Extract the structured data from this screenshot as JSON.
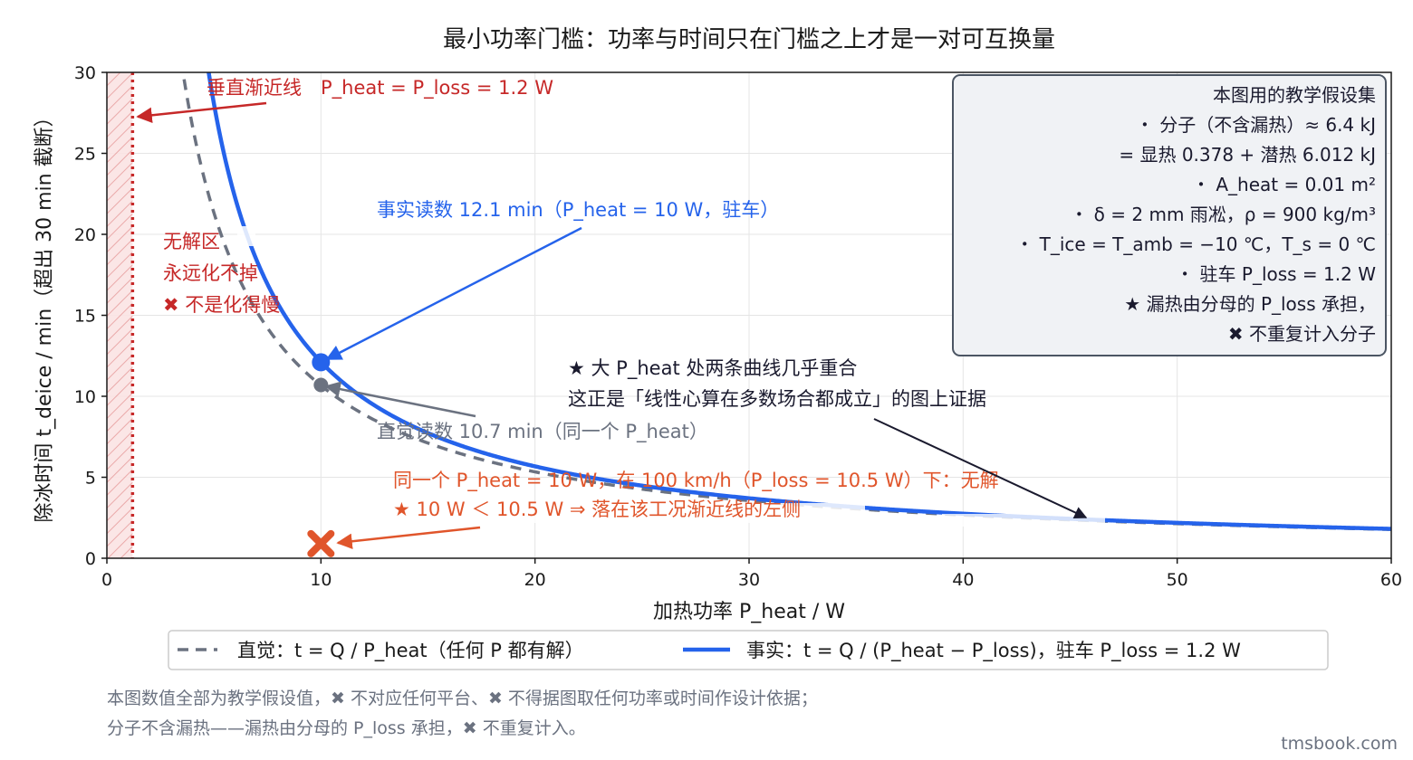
{
  "chart_data": {
    "type": "line",
    "title": "最小功率门槛：功率与时间只在门槛之上才是一对可互换量",
    "xlabel": "加热功率 P_heat / W",
    "ylabel": "除冰时间 t_deice / min（超出 30 min 截断）",
    "xlim": [
      0,
      60
    ],
    "ylim": [
      0,
      30
    ],
    "x_ticks": [
      "0",
      "10",
      "20",
      "30",
      "40",
      "50",
      "60"
    ],
    "y_ticks": [
      "0",
      "5",
      "10",
      "15",
      "20",
      "25",
      "30"
    ],
    "grid": true,
    "Q_kJ": 6.4,
    "P_loss": 1.2,
    "series": [
      {
        "name": "直觉：t = Q / P_heat（任何 P 都有解）",
        "formula": "t = Q / P_heat",
        "color": "#6b7280",
        "style": "dashed"
      },
      {
        "name": "事实：t = Q / (P_heat − P_loss)，驻车 P_loss = 1.2 W",
        "formula": "t = Q / (P_heat - P_loss)",
        "color": "#2563eb",
        "style": "solid"
      }
    ],
    "points": [
      {
        "name": "fact-reading",
        "x": 10,
        "y": 12.1,
        "color": "#2563eb"
      },
      {
        "name": "intuition-reading",
        "x": 10,
        "y": 10.7,
        "color": "#6b7280"
      },
      {
        "name": "no-solution-marker",
        "x": 10,
        "y": 0.9,
        "color": "#e0552b"
      }
    ],
    "asymptote": {
      "x": 1.2,
      "color": "#c62828"
    },
    "legend_position": "bottom-center",
    "annotations": {
      "asymptote": "垂直渐近线　P_heat = P_loss = 1.2 W",
      "no_solution_zone": [
        "无解区",
        "永远化不掉",
        "✖ 不是化得慢"
      ],
      "fact_reading": "事实读数 12.1 min（P_heat = 10 W，驻车）",
      "intuition_reading": "直觉读数 10.7 min（同一个 P_heat）",
      "highway": [
        "同一个 P_heat = 10 W，在 100 km/h（P_loss = 10.5 W）下：无解",
        "★ 10 W ＜ 10.5 W ⇒ 落在该工况渐近线的左侧"
      ],
      "convergence": [
        "★ 大 P_heat 处两条曲线几乎重合",
        "这正是「线性心算在多数场合都成立」的图上证据"
      ]
    },
    "assumption_box": [
      "本图用的教学假设集",
      "・ 分子（不含漏热）≈ 6.4 kJ",
      "= 显热 0.378 + 潜热 6.012 kJ",
      "・ A_heat = 0.01 m²",
      "・ δ = 2 mm 雨凇，ρ = 900 kg/m³",
      "・ T_ice = T_amb = −10 ℃，T_s = 0 ℃",
      "・ 驻车 P_loss = 1.2 W",
      "★ 漏热由分母的 P_loss 承担，",
      "✖ 不重复计入分子"
    ]
  },
  "footnote": [
    "本图数值全部为教学假设值，✖ 不对应任何平台、✖ 不得据图取任何功率或时间作设计依据；",
    "分子不含漏热——漏热由分母的 P_loss 承担，✖ 不重复计入。"
  ],
  "watermark": "tmsbook.com"
}
